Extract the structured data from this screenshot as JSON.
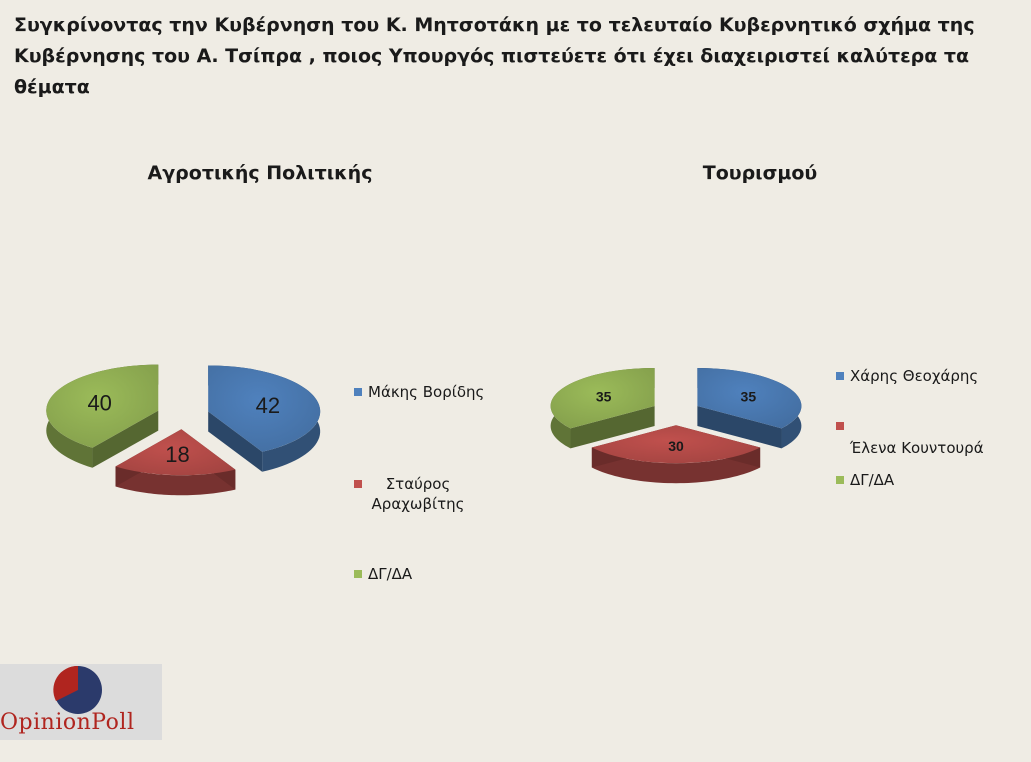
{
  "title": "Συγκρίνοντας την Κυβέρνηση του Κ. Μητσοτάκη με το τελευταίο Κυβερνητικό σχήμα της Κυβέρνησης  του Α. Τσίπρα , ποιος Υπουργός πιστεύετε ότι έχει διαχειριστεί καλύτερα τα θέματα",
  "colors": {
    "blue": "#4f81bd",
    "red": "#c0504d",
    "green": "#9bbb59"
  },
  "chart_data": [
    {
      "type": "pie",
      "title": "Αγροτικής Πολιτικής",
      "legend_position": "right",
      "categories": [
        "Μάκης Βορίδης",
        "Σταύρος Αραχωβίτης",
        "ΔΓ/ΔΑ"
      ],
      "values": [
        42,
        18,
        40
      ],
      "colors": [
        "#4f81bd",
        "#c0504d",
        "#9bbb59"
      ]
    },
    {
      "type": "pie",
      "title": "Τουρισμού",
      "legend_position": "right",
      "categories": [
        "Χάρης Θεοχάρης",
        "Έλενα Κουντουρά",
        "ΔΓ/ΔΑ"
      ],
      "values": [
        35,
        30,
        35
      ],
      "colors": [
        "#4f81bd",
        "#c0504d",
        "#9bbb59"
      ]
    }
  ],
  "logo": {
    "text": "OpinionPoll",
    "icon": "opinionpoll-logo-icon"
  }
}
